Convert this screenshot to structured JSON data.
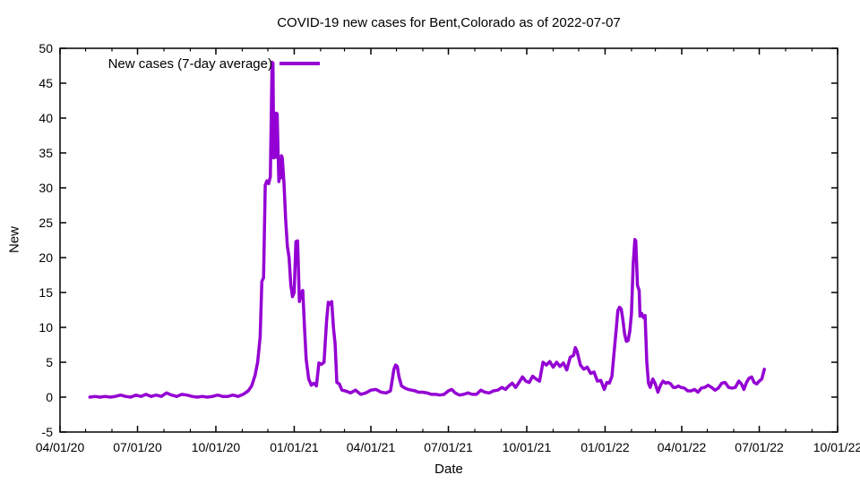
{
  "page": {
    "background": "#ffffff"
  },
  "chart": {
    "title": "COVID-19 new cases for Bent,Colorado as of 2022-07-07",
    "xlabel": "Date",
    "ylabel": "New",
    "legend_label": "New cases (7-day average)",
    "line_color": "#9400d3",
    "axis_color": "#000000",
    "text_color": "#000000"
  },
  "chart_data": {
    "type": "line",
    "title": "COVID-19 new cases for Bent,Colorado as of 2022-07-07",
    "xlabel": "Date",
    "ylabel": "New",
    "grid": false,
    "legend_position": "top-left",
    "legend": [
      "New cases (7-day average)"
    ],
    "ylim": [
      -5,
      50
    ],
    "y_tick_step": 5,
    "y_tick_labels": [
      "-5",
      "0",
      "5",
      "10",
      "15",
      "20",
      "25",
      "30",
      "35",
      "40",
      "45",
      "50"
    ],
    "x_start": "2020-04-01",
    "x_end": "2022-10-01",
    "x_tick_labels": [
      "04/01/20",
      "07/01/20",
      "10/01/20",
      "01/01/21",
      "04/01/21",
      "07/01/21",
      "10/01/21",
      "01/01/22",
      "04/01/22",
      "07/01/22",
      "10/01/22"
    ],
    "x_minor_ticks": "monthly",
    "series": [
      {
        "name": "New cases (7-day average)",
        "color": "#9400d3",
        "points": [
          [
            "2020-05-06",
            0.0
          ],
          [
            "2020-05-12",
            0.1
          ],
          [
            "2020-05-18",
            0.0
          ],
          [
            "2020-05-24",
            0.1
          ],
          [
            "2020-05-30",
            0.0
          ],
          [
            "2020-06-05",
            0.1
          ],
          [
            "2020-06-11",
            0.3
          ],
          [
            "2020-06-17",
            0.1
          ],
          [
            "2020-06-23",
            0.0
          ],
          [
            "2020-06-29",
            0.3
          ],
          [
            "2020-07-05",
            0.1
          ],
          [
            "2020-07-11",
            0.4
          ],
          [
            "2020-07-17",
            0.1
          ],
          [
            "2020-07-23",
            0.3
          ],
          [
            "2020-07-29",
            0.1
          ],
          [
            "2020-08-04",
            0.6
          ],
          [
            "2020-08-10",
            0.3
          ],
          [
            "2020-08-16",
            0.1
          ],
          [
            "2020-08-22",
            0.4
          ],
          [
            "2020-08-28",
            0.3
          ],
          [
            "2020-09-03",
            0.1
          ],
          [
            "2020-09-09",
            0.0
          ],
          [
            "2020-09-15",
            0.1
          ],
          [
            "2020-09-21",
            0.0
          ],
          [
            "2020-09-27",
            0.1
          ],
          [
            "2020-10-03",
            0.3
          ],
          [
            "2020-10-09",
            0.1
          ],
          [
            "2020-10-15",
            0.1
          ],
          [
            "2020-10-21",
            0.3
          ],
          [
            "2020-10-27",
            0.1
          ],
          [
            "2020-11-02",
            0.4
          ],
          [
            "2020-11-08",
            0.9
          ],
          [
            "2020-11-12",
            1.6
          ],
          [
            "2020-11-16",
            3.1
          ],
          [
            "2020-11-19",
            5.0
          ],
          [
            "2020-11-22",
            8.6
          ],
          [
            "2020-11-24",
            16.6
          ],
          [
            "2020-11-26",
            17.1
          ],
          [
            "2020-11-28",
            30.4
          ],
          [
            "2020-11-30",
            31.0
          ],
          [
            "2020-12-02",
            30.6
          ],
          [
            "2020-12-04",
            31.6
          ],
          [
            "2020-12-06",
            48.0
          ],
          [
            "2020-12-07",
            47.9
          ],
          [
            "2020-12-08",
            34.3
          ],
          [
            "2020-12-09",
            37.1
          ],
          [
            "2020-12-10",
            34.4
          ],
          [
            "2020-12-11",
            40.7
          ],
          [
            "2020-12-12",
            40.6
          ],
          [
            "2020-12-13",
            35.1
          ],
          [
            "2020-12-14",
            30.9
          ],
          [
            "2020-12-15",
            33.1
          ],
          [
            "2020-12-16",
            31.4
          ],
          [
            "2020-12-17",
            34.6
          ],
          [
            "2020-12-18",
            34.3
          ],
          [
            "2020-12-20",
            30.7
          ],
          [
            "2020-12-22",
            25.4
          ],
          [
            "2020-12-24",
            21.6
          ],
          [
            "2020-12-26",
            20.0
          ],
          [
            "2020-12-28",
            16.1
          ],
          [
            "2020-12-30",
            14.4
          ],
          [
            "2021-01-01",
            15.0
          ],
          [
            "2021-01-03",
            22.3
          ],
          [
            "2021-01-05",
            22.4
          ],
          [
            "2021-01-07",
            13.7
          ],
          [
            "2021-01-09",
            14.9
          ],
          [
            "2021-01-11",
            15.3
          ],
          [
            "2021-01-13",
            10.0
          ],
          [
            "2021-01-15",
            5.4
          ],
          [
            "2021-01-18",
            2.6
          ],
          [
            "2021-01-21",
            1.7
          ],
          [
            "2021-01-24",
            2.0
          ],
          [
            "2021-01-27",
            1.6
          ],
          [
            "2021-01-30",
            4.9
          ],
          [
            "2021-02-02",
            4.7
          ],
          [
            "2021-02-05",
            5.0
          ],
          [
            "2021-02-08",
            11.0
          ],
          [
            "2021-02-10",
            13.6
          ],
          [
            "2021-02-12",
            13.3
          ],
          [
            "2021-02-14",
            13.7
          ],
          [
            "2021-02-16",
            10.0
          ],
          [
            "2021-02-18",
            7.6
          ],
          [
            "2021-02-20",
            2.1
          ],
          [
            "2021-02-23",
            1.9
          ],
          [
            "2021-02-26",
            1.0
          ],
          [
            "2021-03-02",
            0.9
          ],
          [
            "2021-03-08",
            0.6
          ],
          [
            "2021-03-14",
            1.0
          ],
          [
            "2021-03-20",
            0.4
          ],
          [
            "2021-03-26",
            0.6
          ],
          [
            "2021-04-01",
            1.0
          ],
          [
            "2021-04-07",
            1.1
          ],
          [
            "2021-04-13",
            0.7
          ],
          [
            "2021-04-19",
            0.6
          ],
          [
            "2021-04-24",
            0.9
          ],
          [
            "2021-04-28",
            4.0
          ],
          [
            "2021-04-30",
            4.6
          ],
          [
            "2021-05-02",
            4.4
          ],
          [
            "2021-05-04",
            2.9
          ],
          [
            "2021-05-07",
            1.6
          ],
          [
            "2021-05-11",
            1.3
          ],
          [
            "2021-05-15",
            1.1
          ],
          [
            "2021-05-19",
            1.0
          ],
          [
            "2021-05-23",
            0.9
          ],
          [
            "2021-05-27",
            0.7
          ],
          [
            "2021-06-01",
            0.7
          ],
          [
            "2021-06-06",
            0.6
          ],
          [
            "2021-06-11",
            0.4
          ],
          [
            "2021-06-16",
            0.4
          ],
          [
            "2021-06-21",
            0.3
          ],
          [
            "2021-06-26",
            0.4
          ],
          [
            "2021-07-01",
            0.9
          ],
          [
            "2021-07-05",
            1.1
          ],
          [
            "2021-07-09",
            0.6
          ],
          [
            "2021-07-14",
            0.3
          ],
          [
            "2021-07-19",
            0.4
          ],
          [
            "2021-07-24",
            0.6
          ],
          [
            "2021-07-29",
            0.4
          ],
          [
            "2021-08-03",
            0.4
          ],
          [
            "2021-08-08",
            1.0
          ],
          [
            "2021-08-13",
            0.7
          ],
          [
            "2021-08-18",
            0.6
          ],
          [
            "2021-08-23",
            0.9
          ],
          [
            "2021-08-28",
            1.0
          ],
          [
            "2021-09-02",
            1.4
          ],
          [
            "2021-09-06",
            1.1
          ],
          [
            "2021-09-10",
            1.6
          ],
          [
            "2021-09-14",
            2.0
          ],
          [
            "2021-09-18",
            1.4
          ],
          [
            "2021-09-22",
            2.1
          ],
          [
            "2021-09-26",
            2.9
          ],
          [
            "2021-09-30",
            2.3
          ],
          [
            "2021-10-04",
            2.1
          ],
          [
            "2021-10-08",
            3.0
          ],
          [
            "2021-10-12",
            2.6
          ],
          [
            "2021-10-16",
            2.3
          ],
          [
            "2021-10-20",
            5.0
          ],
          [
            "2021-10-24",
            4.6
          ],
          [
            "2021-10-28",
            5.1
          ],
          [
            "2021-11-01",
            4.3
          ],
          [
            "2021-11-05",
            5.0
          ],
          [
            "2021-11-09",
            4.4
          ],
          [
            "2021-11-13",
            4.9
          ],
          [
            "2021-11-17",
            3.9
          ],
          [
            "2021-11-21",
            5.7
          ],
          [
            "2021-11-25",
            6.0
          ],
          [
            "2021-11-27",
            7.1
          ],
          [
            "2021-11-29",
            6.6
          ],
          [
            "2021-12-03",
            4.6
          ],
          [
            "2021-12-07",
            4.0
          ],
          [
            "2021-12-11",
            4.3
          ],
          [
            "2021-12-15",
            3.4
          ],
          [
            "2021-12-19",
            3.6
          ],
          [
            "2021-12-23",
            2.3
          ],
          [
            "2021-12-27",
            2.4
          ],
          [
            "2021-12-31",
            1.1
          ],
          [
            "2022-01-03",
            2.1
          ],
          [
            "2022-01-06",
            2.0
          ],
          [
            "2022-01-09",
            3.0
          ],
          [
            "2022-01-12",
            7.0
          ],
          [
            "2022-01-14",
            9.6
          ],
          [
            "2022-01-16",
            12.4
          ],
          [
            "2022-01-18",
            12.9
          ],
          [
            "2022-01-20",
            12.6
          ],
          [
            "2022-01-22",
            11.0
          ],
          [
            "2022-01-24",
            9.0
          ],
          [
            "2022-01-26",
            8.0
          ],
          [
            "2022-01-28",
            8.1
          ],
          [
            "2022-01-30",
            9.4
          ],
          [
            "2022-02-01",
            12.0
          ],
          [
            "2022-02-03",
            19.0
          ],
          [
            "2022-02-05",
            22.6
          ],
          [
            "2022-02-06",
            22.4
          ],
          [
            "2022-02-08",
            16.0
          ],
          [
            "2022-02-10",
            15.3
          ],
          [
            "2022-02-11",
            11.6
          ],
          [
            "2022-02-13",
            12.0
          ],
          [
            "2022-02-15",
            11.4
          ],
          [
            "2022-02-17",
            11.7
          ],
          [
            "2022-02-19",
            5.0
          ],
          [
            "2022-02-21",
            2.0
          ],
          [
            "2022-02-23",
            1.4
          ],
          [
            "2022-02-26",
            2.6
          ],
          [
            "2022-03-01",
            1.9
          ],
          [
            "2022-03-04",
            0.7
          ],
          [
            "2022-03-07",
            1.7
          ],
          [
            "2022-03-10",
            2.3
          ],
          [
            "2022-03-13",
            2.0
          ],
          [
            "2022-03-16",
            2.1
          ],
          [
            "2022-03-19",
            1.9
          ],
          [
            "2022-03-22",
            1.4
          ],
          [
            "2022-03-25",
            1.4
          ],
          [
            "2022-03-28",
            1.6
          ],
          [
            "2022-03-31",
            1.4
          ],
          [
            "2022-04-04",
            1.3
          ],
          [
            "2022-04-08",
            0.9
          ],
          [
            "2022-04-12",
            0.9
          ],
          [
            "2022-04-16",
            1.1
          ],
          [
            "2022-04-20",
            0.7
          ],
          [
            "2022-04-24",
            1.3
          ],
          [
            "2022-04-28",
            1.4
          ],
          [
            "2022-05-02",
            1.7
          ],
          [
            "2022-05-06",
            1.4
          ],
          [
            "2022-05-10",
            1.0
          ],
          [
            "2022-05-14",
            1.3
          ],
          [
            "2022-05-18",
            2.0
          ],
          [
            "2022-05-22",
            2.1
          ],
          [
            "2022-05-26",
            1.4
          ],
          [
            "2022-05-30",
            1.3
          ],
          [
            "2022-06-03",
            1.4
          ],
          [
            "2022-06-07",
            2.3
          ],
          [
            "2022-06-10",
            1.9
          ],
          [
            "2022-06-13",
            1.1
          ],
          [
            "2022-06-16",
            2.1
          ],
          [
            "2022-06-19",
            2.7
          ],
          [
            "2022-06-22",
            2.9
          ],
          [
            "2022-06-25",
            2.1
          ],
          [
            "2022-06-28",
            1.9
          ],
          [
            "2022-07-01",
            2.3
          ],
          [
            "2022-07-04",
            2.6
          ],
          [
            "2022-07-07",
            4.0
          ]
        ]
      }
    ]
  }
}
